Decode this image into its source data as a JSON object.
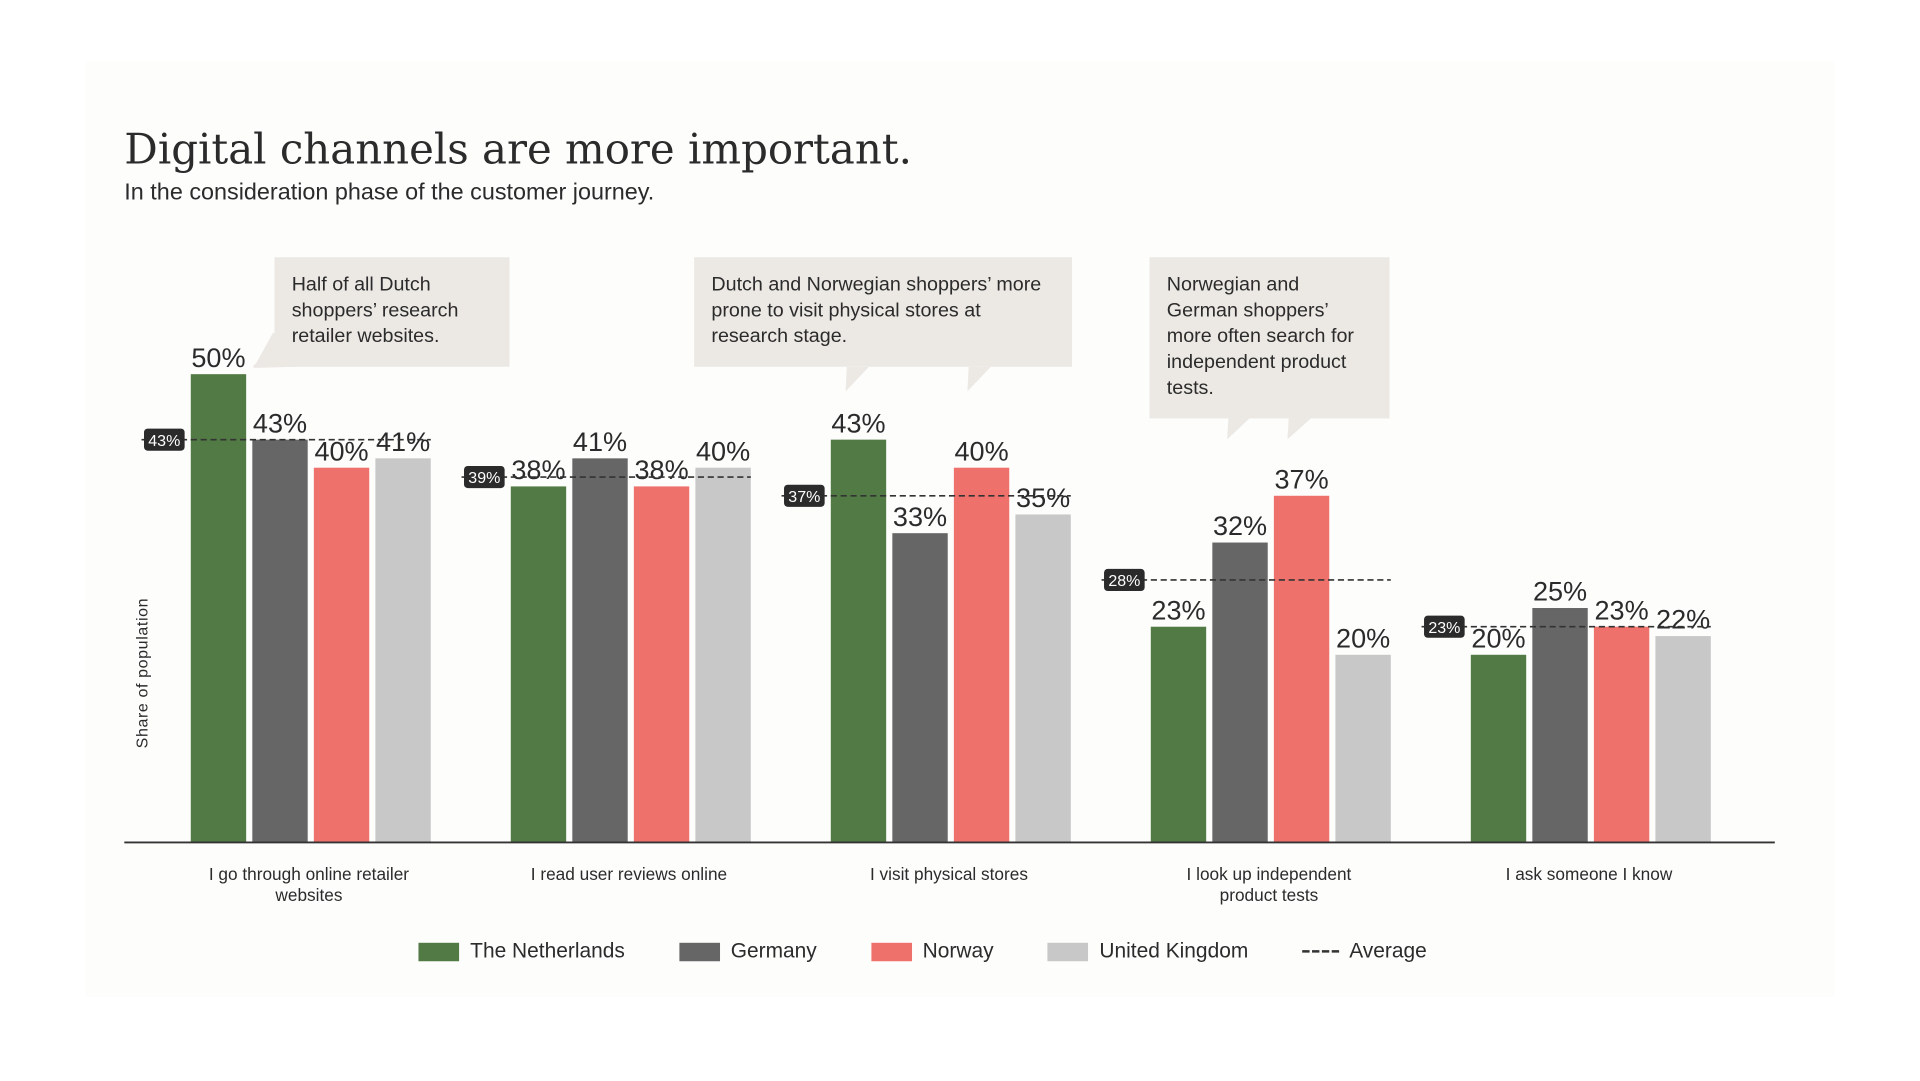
{
  "chart_data": {
    "type": "bar",
    "title": "Digital channels are more important.",
    "subtitle": "In the consideration phase of the customer journey.",
    "ylabel": "Share of population",
    "xlabel": "",
    "ylim": [
      0,
      50
    ],
    "grid": false,
    "legend_position": "bottom",
    "categories": [
      "I go through online retailer websites",
      "I read user reviews online",
      "I visit physical stores",
      "I look up independent product tests",
      "I ask someone I know"
    ],
    "series": [
      {
        "name": "The Netherlands",
        "color": "#527a44",
        "values": [
          50,
          38,
          43,
          23,
          20
        ]
      },
      {
        "name": "Germany",
        "color": "#666666",
        "values": [
          43,
          41,
          33,
          32,
          25
        ]
      },
      {
        "name": "Norway",
        "color": "#ef716b",
        "values": [
          40,
          38,
          40,
          37,
          23
        ]
      },
      {
        "name": "United Kingdom",
        "color": "#c8c8c8",
        "values": [
          41,
          40,
          35,
          20,
          22
        ]
      }
    ],
    "average": {
      "name": "Average",
      "values": [
        43,
        39,
        37,
        28,
        23
      ]
    },
    "annotations": [
      "Half of all Dutch shoppers’ research retailer websites.",
      "Dutch and Norwegian shoppers’ more prone to visit physical stores at research stage.",
      "Norwegian and German shoppers’ more often search for independent product tests."
    ]
  }
}
